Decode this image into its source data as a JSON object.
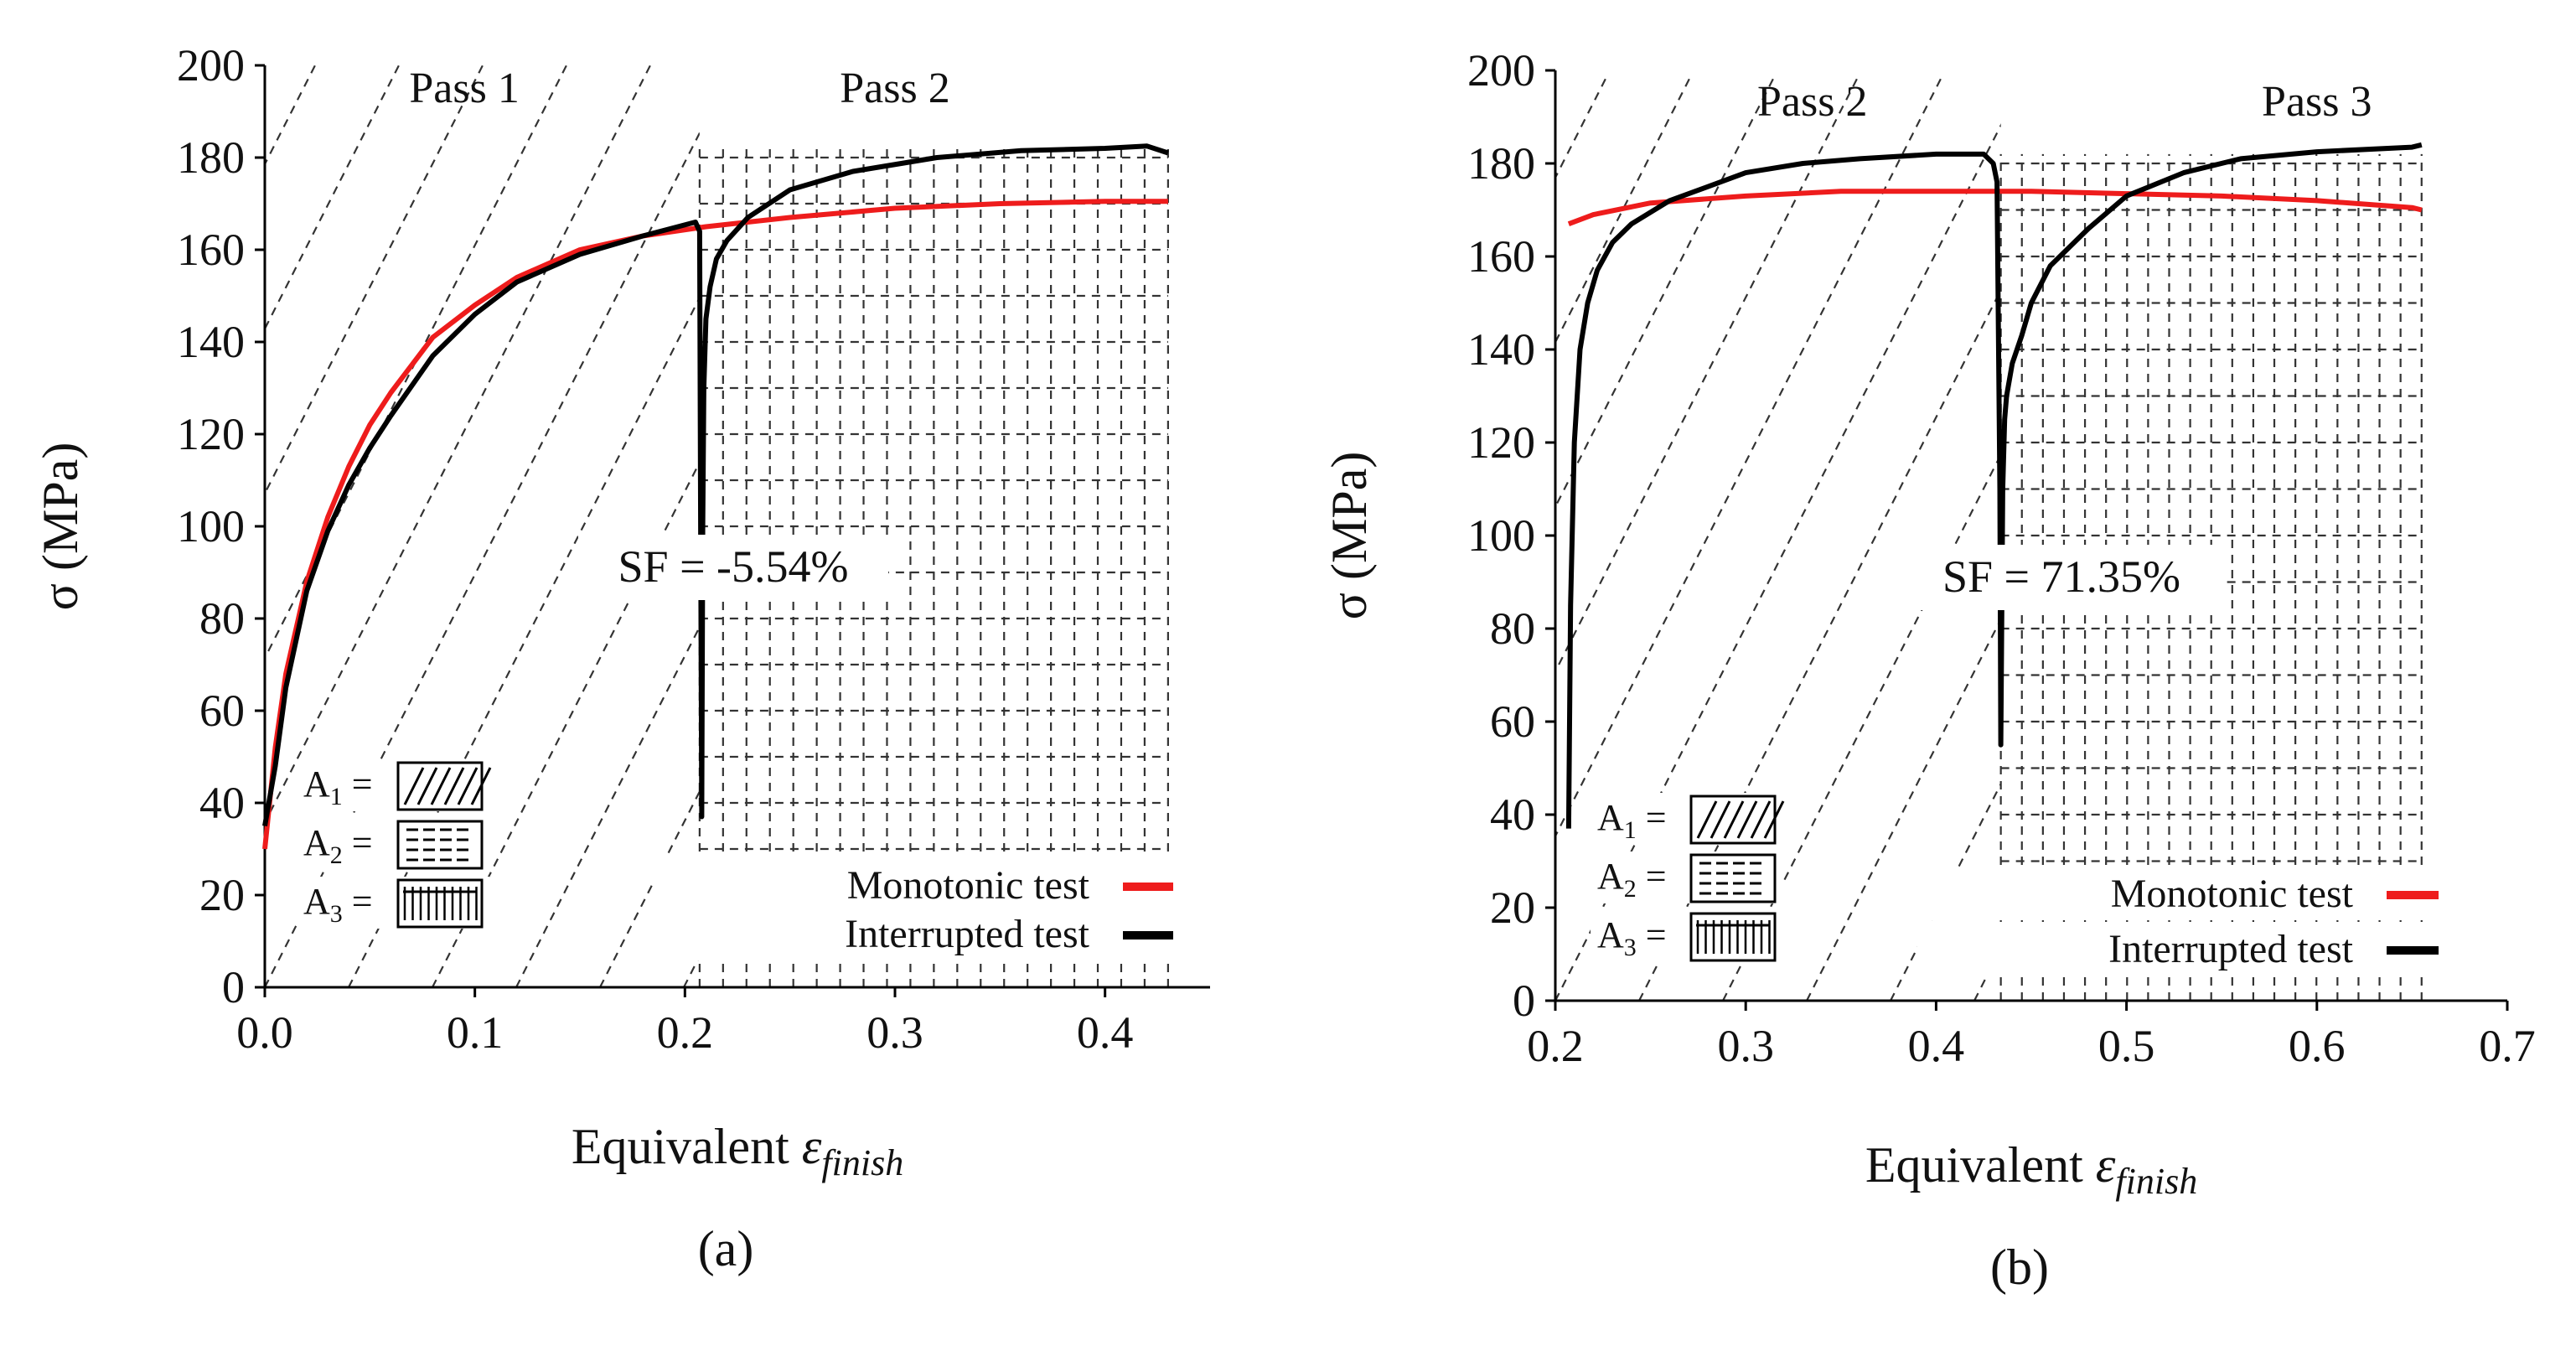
{
  "chart_data": [
    {
      "type": "line",
      "panel": "a",
      "caption": "(a)",
      "xlabel_prefix": "Equivalent ",
      "xlabel_symbol": "ε",
      "xlabel_sub": "finish",
      "ylabel": "σ (MPa)",
      "xlim": [
        0.0,
        0.45
      ],
      "ylim": [
        0,
        200
      ],
      "xticks": [
        "0.0",
        "0.1",
        "0.2",
        "0.3",
        "0.4"
      ],
      "xtick_values": [
        0.0,
        0.1,
        0.2,
        0.3,
        0.4
      ],
      "yticks": [
        "0",
        "20",
        "40",
        "60",
        "80",
        "100",
        "120",
        "140",
        "160",
        "180",
        "200"
      ],
      "ytick_values": [
        0,
        20,
        40,
        60,
        80,
        100,
        120,
        140,
        160,
        180,
        200
      ],
      "pass_labels": [
        {
          "text": "Pass 1",
          "x": 0.095,
          "y": 190
        },
        {
          "text": "Pass 2",
          "x": 0.3,
          "y": 190
        }
      ],
      "annotation": {
        "text": "SF = -5.54%",
        "x": 0.165,
        "y": 92
      },
      "interrupt_x": 0.207,
      "end_x": 0.43,
      "legend": [
        {
          "label": "Monotonic test",
          "color": "#ee1c1c"
        },
        {
          "label": "Interrupted test",
          "color": "#000000"
        }
      ],
      "area_legend": [
        {
          "label": "A",
          "sub": "1",
          "pattern": "hatch"
        },
        {
          "label": "A",
          "sub": "2",
          "pattern": "horizontal"
        },
        {
          "label": "A",
          "sub": "3",
          "pattern": "vertical"
        }
      ],
      "series": [
        {
          "name": "Monotonic test",
          "color": "#ee1c1c",
          "x": [
            0.0,
            0.005,
            0.01,
            0.02,
            0.03,
            0.04,
            0.05,
            0.06,
            0.08,
            0.1,
            0.12,
            0.15,
            0.18,
            0.21,
            0.25,
            0.3,
            0.35,
            0.4,
            0.43
          ],
          "y": [
            30,
            52,
            68,
            88,
            102,
            113,
            122,
            129,
            141,
            148,
            154,
            160,
            163,
            165,
            167,
            169,
            170,
            170.5,
            170.5
          ]
        },
        {
          "name": "Interrupted test",
          "color": "#000000",
          "x": [
            0.0,
            0.005,
            0.01,
            0.02,
            0.03,
            0.04,
            0.05,
            0.06,
            0.08,
            0.1,
            0.12,
            0.15,
            0.18,
            0.205,
            0.207,
            0.2075,
            0.208,
            0.2085,
            0.209,
            0.21,
            0.212,
            0.215,
            0.22,
            0.23,
            0.25,
            0.28,
            0.32,
            0.36,
            0.4,
            0.42,
            0.43
          ],
          "y": [
            35,
            48,
            65,
            86,
            99,
            109,
            117,
            124,
            137,
            146,
            153,
            159,
            163,
            166,
            164,
            100,
            37,
            100,
            130,
            145,
            152,
            158,
            162,
            167,
            173,
            177,
            180,
            181.5,
            182,
            182.5,
            181
          ]
        }
      ]
    },
    {
      "type": "line",
      "panel": "b",
      "caption": "(b)",
      "xlabel_prefix": "Equivalent ",
      "xlabel_symbol": "ε",
      "xlabel_sub": "finish",
      "ylabel": "σ (MPa)",
      "xlim": [
        0.2,
        0.7
      ],
      "ylim": [
        0,
        200
      ],
      "xticks": [
        "0.2",
        "0.3",
        "0.4",
        "0.5",
        "0.6",
        "0.7"
      ],
      "xtick_values": [
        0.2,
        0.3,
        0.4,
        0.5,
        0.6,
        0.7
      ],
      "yticks": [
        "0",
        "20",
        "40",
        "60",
        "80",
        "100",
        "120",
        "140",
        "160",
        "180",
        "200"
      ],
      "ytick_values": [
        0,
        20,
        40,
        60,
        80,
        100,
        120,
        140,
        160,
        180,
        200
      ],
      "pass_labels": [
        {
          "text": "Pass 2",
          "x": 0.335,
          "y": 192
        },
        {
          "text": "Pass 3",
          "x": 0.6,
          "y": 192
        }
      ],
      "annotation": {
        "text": "SF = 71.35%",
        "x": 0.43,
        "y": 92
      },
      "interrupt_x": 0.434,
      "end_x": 0.655,
      "legend": [
        {
          "label": "Monotonic test",
          "color": "#ee1c1c"
        },
        {
          "label": "Interrupted test",
          "color": "#000000"
        }
      ],
      "area_legend": [
        {
          "label": "A",
          "sub": "1",
          "pattern": "hatch"
        },
        {
          "label": "A",
          "sub": "2",
          "pattern": "horizontal"
        },
        {
          "label": "A",
          "sub": "3",
          "pattern": "vertical"
        }
      ],
      "series": [
        {
          "name": "Monotonic test",
          "color": "#ee1c1c",
          "x": [
            0.207,
            0.22,
            0.25,
            0.3,
            0.35,
            0.4,
            0.45,
            0.5,
            0.55,
            0.6,
            0.65,
            0.655
          ],
          "y": [
            167,
            169,
            171.5,
            173,
            174,
            174,
            174,
            173.5,
            173,
            172,
            170.5,
            170
          ]
        },
        {
          "name": "Interrupted test",
          "color": "#000000",
          "x": [
            0.207,
            0.208,
            0.21,
            0.213,
            0.217,
            0.222,
            0.23,
            0.24,
            0.26,
            0.28,
            0.3,
            0.33,
            0.36,
            0.4,
            0.425,
            0.43,
            0.432,
            0.4335,
            0.434,
            0.435,
            0.436,
            0.437,
            0.44,
            0.445,
            0.45,
            0.46,
            0.48,
            0.5,
            0.53,
            0.56,
            0.6,
            0.65,
            0.655
          ],
          "y": [
            37,
            85,
            120,
            140,
            150,
            157,
            163,
            167,
            172,
            175,
            178,
            180,
            181,
            182,
            182,
            180,
            176,
            110,
            55,
            110,
            125,
            130,
            137,
            143,
            150,
            158,
            166,
            173,
            178,
            181,
            182.5,
            183.5,
            184
          ]
        }
      ]
    }
  ]
}
